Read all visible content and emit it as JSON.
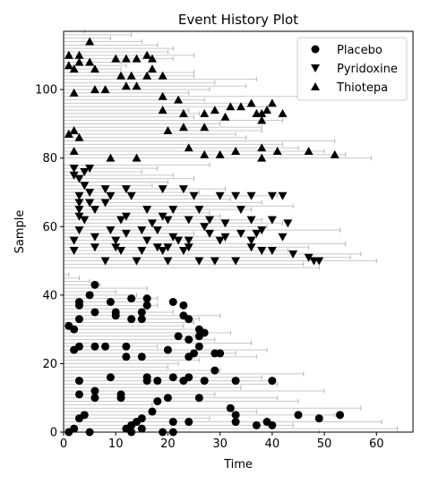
{
  "chart_data": {
    "type": "scatter",
    "title": "Event History Plot",
    "xlabel": "Time",
    "ylabel": "Sample",
    "xlim": [
      0,
      67
    ],
    "ylim": [
      0,
      117
    ],
    "xticks": [
      0,
      10,
      20,
      30,
      40,
      50,
      60
    ],
    "yticks": [
      0,
      20,
      40,
      60,
      80,
      100
    ],
    "grid": false,
    "legend": {
      "position": "top-right"
    },
    "colors": {
      "line": "#c8c8c8",
      "marker": "#000000"
    },
    "series": [
      {
        "name": "Placebo",
        "marker": "circle",
        "samples": [
          0,
          46
        ],
        "end_times": [
          49,
          64,
          44,
          61,
          28,
          52,
          37,
          57,
          17,
          45,
          41,
          29,
          50,
          34,
          41,
          40,
          38,
          46,
          30,
          20,
          22,
          26,
          37,
          33,
          39,
          18,
          36,
          29,
          25,
          32,
          26,
          23,
          25,
          26,
          30,
          21,
          16,
          18,
          16,
          18,
          14,
          10,
          16,
          7,
          5,
          3,
          1
        ],
        "events": [
          [
            1,
            0
          ],
          [
            5,
            0
          ],
          [
            13,
            0
          ],
          [
            19,
            0
          ],
          [
            21,
            0
          ],
          [
            2,
            1
          ],
          [
            12,
            1
          ],
          [
            15,
            1
          ],
          [
            13,
            2
          ],
          [
            37,
            2
          ],
          [
            40,
            2
          ],
          [
            14,
            3
          ],
          [
            21,
            3
          ],
          [
            24,
            3
          ],
          [
            33,
            3
          ],
          [
            39,
            3
          ],
          [
            3,
            4
          ],
          [
            15,
            4
          ],
          [
            49,
            4
          ],
          [
            4,
            5
          ],
          [
            33,
            5
          ],
          [
            45,
            5
          ],
          [
            53,
            5
          ],
          [
            17,
            6
          ],
          [
            32,
            7
          ],
          [
            18,
            9
          ],
          [
            6,
            10
          ],
          [
            11,
            10
          ],
          [
            20,
            10
          ],
          [
            26,
            10
          ],
          [
            3,
            11
          ],
          [
            11,
            11
          ],
          [
            6,
            12
          ],
          [
            3,
            15
          ],
          [
            16,
            15
          ],
          [
            18,
            15
          ],
          [
            23,
            15
          ],
          [
            27,
            15
          ],
          [
            33,
            15
          ],
          [
            40,
            15
          ],
          [
            16,
            16
          ],
          [
            9,
            16
          ],
          [
            21,
            16
          ],
          [
            24,
            16
          ],
          [
            29,
            18
          ],
          [
            12,
            22
          ],
          [
            15,
            22
          ],
          [
            24,
            22
          ],
          [
            25,
            23
          ],
          [
            29,
            23
          ],
          [
            30,
            23
          ],
          [
            2,
            24
          ],
          [
            20,
            24
          ],
          [
            3,
            25
          ],
          [
            6,
            25
          ],
          [
            8,
            25
          ],
          [
            12,
            25
          ],
          [
            26,
            25
          ],
          [
            24,
            27
          ],
          [
            22,
            28
          ],
          [
            26,
            28
          ],
          [
            27,
            29
          ],
          [
            26,
            30
          ],
          [
            1,
            31
          ],
          [
            2,
            30
          ],
          [
            3,
            33
          ],
          [
            13,
            33
          ],
          [
            15,
            33
          ],
          [
            24,
            33
          ],
          [
            23,
            34
          ],
          [
            6,
            35
          ],
          [
            10,
            35
          ],
          [
            15,
            35
          ],
          [
            3,
            37
          ],
          [
            16,
            37
          ],
          [
            23,
            37
          ],
          [
            10,
            34
          ],
          [
            3,
            38
          ],
          [
            9,
            38
          ],
          [
            13,
            39
          ],
          [
            16,
            39
          ],
          [
            21,
            38
          ],
          [
            5,
            40
          ],
          [
            6,
            43
          ]
        ]
      },
      {
        "name": "Pyridoxine",
        "marker": "triangle-down",
        "samples": [
          48,
          78
        ],
        "end_times": [
          49,
          46,
          60,
          55,
          57,
          43,
          47,
          54,
          31,
          37,
          25,
          53,
          39,
          42,
          38,
          30,
          28,
          36,
          44,
          38,
          32,
          41,
          26,
          31,
          17,
          20,
          25,
          21,
          15,
          18,
          28
        ],
        "events": [
          [
            8,
            50
          ],
          [
            14,
            50
          ],
          [
            20,
            50
          ],
          [
            26,
            50
          ],
          [
            29,
            50
          ],
          [
            33,
            50
          ],
          [
            48,
            50
          ],
          [
            49,
            50
          ],
          [
            47,
            51
          ],
          [
            44,
            52
          ],
          [
            2,
            53
          ],
          [
            11,
            53
          ],
          [
            15,
            53
          ],
          [
            19,
            53
          ],
          [
            23,
            53
          ],
          [
            38,
            53
          ],
          [
            40,
            53
          ],
          [
            6,
            54
          ],
          [
            10,
            54
          ],
          [
            18,
            54
          ],
          [
            20,
            54
          ],
          [
            24,
            54
          ],
          [
            36,
            54
          ],
          [
            2,
            56
          ],
          [
            10,
            56
          ],
          [
            16,
            56
          ],
          [
            22,
            56
          ],
          [
            24,
            56
          ],
          [
            30,
            56
          ],
          [
            36,
            56
          ],
          [
            6,
            57
          ],
          [
            21,
            57
          ],
          [
            31,
            57
          ],
          [
            42,
            57
          ],
          [
            12,
            58
          ],
          [
            28,
            58
          ],
          [
            34,
            58
          ],
          [
            37,
            58
          ],
          [
            3,
            59
          ],
          [
            9,
            59
          ],
          [
            15,
            59
          ],
          [
            18,
            59
          ],
          [
            38,
            59
          ],
          [
            27,
            60
          ],
          [
            17,
            61
          ],
          [
            31,
            61
          ],
          [
            43,
            61
          ],
          [
            4,
            62
          ],
          [
            11,
            62
          ],
          [
            20,
            62
          ],
          [
            24,
            62
          ],
          [
            28,
            62
          ],
          [
            36,
            62
          ],
          [
            40,
            62
          ],
          [
            3,
            63
          ],
          [
            12,
            63
          ],
          [
            19,
            63
          ],
          [
            3,
            65
          ],
          [
            6,
            65
          ],
          [
            16,
            65
          ],
          [
            21,
            65
          ],
          [
            26,
            65
          ],
          [
            34,
            65
          ],
          [
            3,
            67
          ],
          [
            5,
            67
          ],
          [
            8,
            67
          ],
          [
            3,
            69
          ],
          [
            9,
            69
          ],
          [
            13,
            69
          ],
          [
            25,
            69
          ],
          [
            30,
            69
          ],
          [
            33,
            69
          ],
          [
            36,
            69
          ],
          [
            40,
            69
          ],
          [
            42,
            69
          ],
          [
            5,
            70
          ],
          [
            8,
            71
          ],
          [
            12,
            71
          ],
          [
            19,
            71
          ],
          [
            23,
            71
          ],
          [
            4,
            72
          ],
          [
            3,
            74
          ],
          [
            2,
            75
          ],
          [
            4,
            76
          ],
          [
            2,
            77
          ],
          [
            5,
            77
          ]
        ]
      },
      {
        "name": "Thiotepa",
        "marker": "triangle-up",
        "samples": [
          80,
          117
        ],
        "end_times": [
          59,
          54,
          50,
          45,
          42,
          52,
          35,
          33,
          38,
          38,
          30,
          42,
          25,
          26,
          24,
          39,
          36,
          27,
          45,
          24,
          28,
          35,
          29,
          37,
          25,
          25,
          11,
          12,
          11,
          21,
          25,
          20,
          21,
          18,
          15,
          9,
          13,
          4
        ],
        "events": [
          [
            9,
            80
          ],
          [
            27,
            81
          ],
          [
            30,
            81
          ],
          [
            33,
            82
          ],
          [
            38,
            83
          ],
          [
            41,
            82
          ],
          [
            47,
            82
          ],
          [
            52,
            81
          ],
          [
            24,
            83
          ],
          [
            38,
            80
          ],
          [
            2,
            82
          ],
          [
            14,
            80
          ],
          [
            1,
            87
          ],
          [
            2,
            88
          ],
          [
            3,
            86
          ],
          [
            20,
            88
          ],
          [
            23,
            89
          ],
          [
            27,
            89
          ],
          [
            38,
            91
          ],
          [
            42,
            93
          ],
          [
            38,
            93
          ],
          [
            39,
            94
          ],
          [
            34,
            95
          ],
          [
            36,
            96
          ],
          [
            19,
            94
          ],
          [
            23,
            93
          ],
          [
            27,
            93
          ],
          [
            29,
            94
          ],
          [
            31,
            92
          ],
          [
            32,
            95
          ],
          [
            37,
            93
          ],
          [
            22,
            97
          ],
          [
            40,
            96
          ],
          [
            19,
            98
          ],
          [
            2,
            99
          ],
          [
            6,
            100
          ],
          [
            8,
            100
          ],
          [
            12,
            101
          ],
          [
            14,
            101
          ],
          [
            11,
            104
          ],
          [
            13,
            104
          ],
          [
            16,
            104
          ],
          [
            19,
            104
          ],
          [
            2,
            106
          ],
          [
            6,
            106
          ],
          [
            17,
            106
          ],
          [
            1,
            107
          ],
          [
            3,
            108
          ],
          [
            5,
            108
          ],
          [
            10,
            109
          ],
          [
            12,
            109
          ],
          [
            14,
            109
          ],
          [
            17,
            109
          ],
          [
            1,
            110
          ],
          [
            3,
            110
          ],
          [
            16,
            110
          ],
          [
            5,
            114
          ]
        ]
      }
    ]
  }
}
